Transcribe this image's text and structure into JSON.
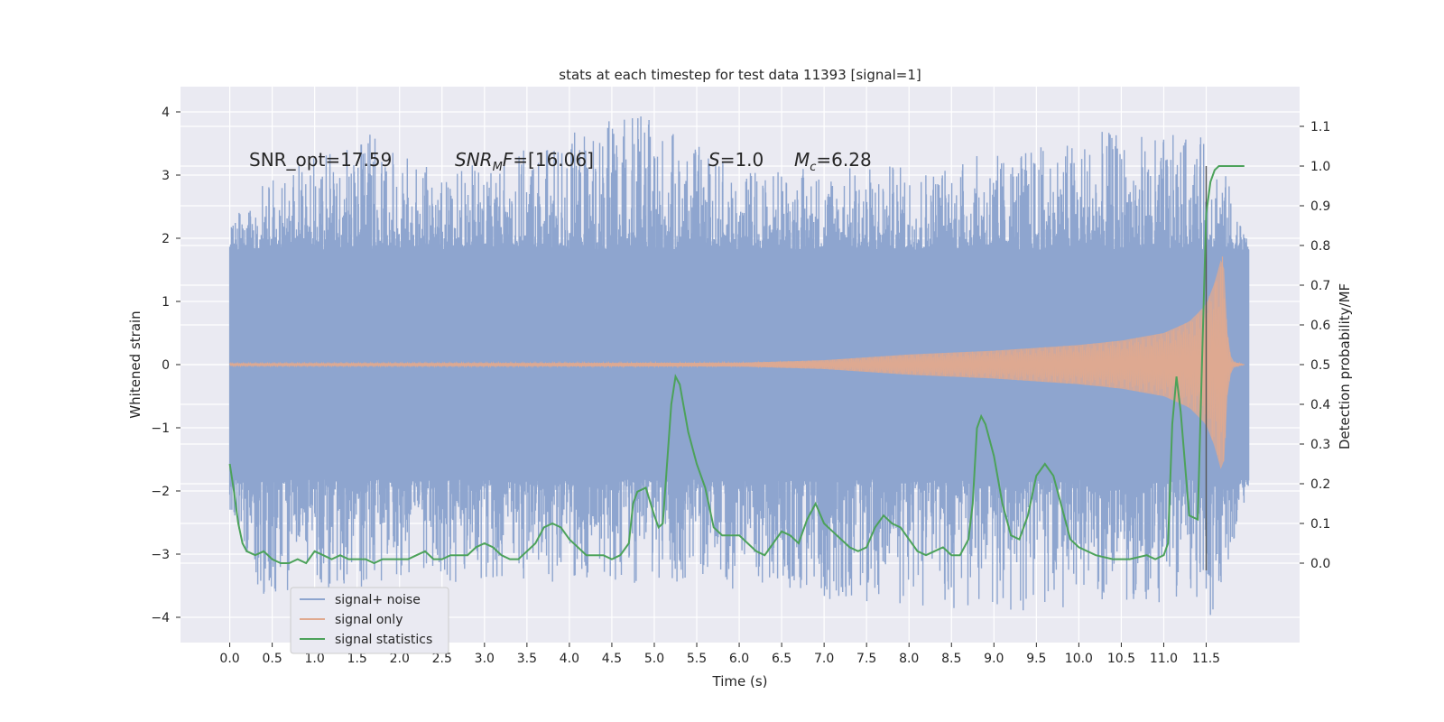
{
  "chart_data": {
    "type": "line",
    "title": "stats at each timestep for test data 11393 [signal=1]",
    "xlabel": "Time (s)",
    "ylabel": "Whitened strain",
    "ylabel_right": "Detection probability/MF",
    "xlim": [
      -0.58,
      12.6
    ],
    "ylim": [
      -4.4,
      4.4
    ],
    "ylim_right": [
      -0.2,
      1.2
    ],
    "x_ticks": [
      0.0,
      0.5,
      1.0,
      1.5,
      2.0,
      2.5,
      3.0,
      3.5,
      4.0,
      4.5,
      5.0,
      5.5,
      6.0,
      6.5,
      7.0,
      7.5,
      8.0,
      8.5,
      9.0,
      9.5,
      10.0,
      10.5,
      11.0,
      11.5
    ],
    "x_tick_labels": [
      "0.0",
      "0.5",
      "1.0",
      "1.5",
      "2.0",
      "2.5",
      "3.0",
      "3.5",
      "4.0",
      "4.5",
      "5.0",
      "5.5",
      "6.0",
      "6.5",
      "7.0",
      "7.5",
      "8.0",
      "8.5",
      "9.0",
      "9.5",
      "10.0",
      "10.5",
      "11.0",
      "11.5"
    ],
    "y_ticks": [
      -4,
      -3,
      -2,
      -1,
      0,
      1,
      2,
      3,
      4
    ],
    "y_tick_labels": [
      "−4",
      "−3",
      "−2",
      "−1",
      "0",
      "1",
      "2",
      "3",
      "4"
    ],
    "y_ticks_right": [
      0.0,
      0.1,
      0.2,
      0.3,
      0.4,
      0.5,
      0.6,
      0.7,
      0.8,
      0.9,
      1.0,
      1.1
    ],
    "y_tick_labels_right": [
      "0.0",
      "0.1",
      "0.2",
      "0.3",
      "0.4",
      "0.5",
      "0.6",
      "0.7",
      "0.8",
      "0.9",
      "1.0",
      "1.1"
    ],
    "grid": true,
    "legend_position": "lower-left",
    "annotations": [
      {
        "text": "SNR_opt=17.59",
        "x": 0.2,
        "y": 3.1
      },
      {
        "text": "SNRMF=[16.06]",
        "x": 2.6,
        "y": 3.1
      },
      {
        "text": "S=1.0",
        "x": 5.6,
        "y": 3.1
      },
      {
        "text": "Mc=6.28",
        "x": 6.6,
        "y": 3.1
      }
    ],
    "vline": {
      "x": 11.5,
      "y_right": [
        -0.0,
        1.0
      ]
    },
    "series": [
      {
        "name": "signal+ noise",
        "color": "#8ea5cf",
        "axis": "left",
        "kind": "noise-band",
        "x_range": [
          0.0,
          12.0
        ],
        "typical_amplitude": 1.3,
        "peak_envelope": [
          [
            0.0,
            2.3
          ],
          [
            0.4,
            2.9
          ],
          [
            1.6,
            3.7
          ],
          [
            2.5,
            3.0
          ],
          [
            4.8,
            4.0
          ],
          [
            6.0,
            3.1
          ],
          [
            8.2,
            3.2
          ],
          [
            9.2,
            3.4
          ],
          [
            10.3,
            3.7
          ],
          [
            11.6,
            3.6
          ],
          [
            12.0,
            1.9
          ]
        ],
        "trough_envelope": [
          [
            0.0,
            -2.5
          ],
          [
            0.4,
            -3.7
          ],
          [
            1.7,
            -3.5
          ],
          [
            3.3,
            -3.4
          ],
          [
            6.0,
            -3.6
          ],
          [
            9.1,
            -4.0
          ],
          [
            10.0,
            -3.8
          ],
          [
            11.3,
            -3.8
          ],
          [
            11.6,
            -4.0
          ],
          [
            12.0,
            -1.9
          ]
        ]
      },
      {
        "name": "signal only",
        "color": "#e0a98f",
        "axis": "left",
        "kind": "chirp",
        "x_range": [
          0.0,
          11.95
        ],
        "envelope": [
          [
            0.0,
            0.02
          ],
          [
            6.0,
            0.03
          ],
          [
            7.0,
            0.07
          ],
          [
            8.0,
            0.16
          ],
          [
            9.0,
            0.22
          ],
          [
            10.0,
            0.31
          ],
          [
            10.5,
            0.38
          ],
          [
            11.0,
            0.5
          ],
          [
            11.3,
            0.68
          ],
          [
            11.5,
            0.95
          ],
          [
            11.6,
            1.3
          ],
          [
            11.7,
            1.8
          ],
          [
            11.75,
            0.5
          ],
          [
            11.8,
            0.05
          ],
          [
            11.95,
            0.0
          ]
        ]
      },
      {
        "name": "signal statistics",
        "color": "#4ca25a",
        "axis": "right",
        "x": [
          0.0,
          0.05,
          0.1,
          0.15,
          0.2,
          0.3,
          0.4,
          0.5,
          0.6,
          0.7,
          0.8,
          0.9,
          1.0,
          1.1,
          1.2,
          1.3,
          1.4,
          1.5,
          1.6,
          1.7,
          1.8,
          1.9,
          2.0,
          2.1,
          2.2,
          2.3,
          2.4,
          2.5,
          2.6,
          2.7,
          2.8,
          2.9,
          3.0,
          3.1,
          3.2,
          3.3,
          3.4,
          3.5,
          3.6,
          3.7,
          3.8,
          3.9,
          4.0,
          4.1,
          4.2,
          4.3,
          4.4,
          4.5,
          4.6,
          4.7,
          4.75,
          4.8,
          4.9,
          5.0,
          5.05,
          5.1,
          5.15,
          5.2,
          5.25,
          5.3,
          5.4,
          5.5,
          5.6,
          5.7,
          5.8,
          5.9,
          6.0,
          6.1,
          6.2,
          6.3,
          6.4,
          6.5,
          6.6,
          6.7,
          6.8,
          6.9,
          7.0,
          7.1,
          7.2,
          7.3,
          7.4,
          7.5,
          7.6,
          7.7,
          7.8,
          7.9,
          8.0,
          8.1,
          8.2,
          8.3,
          8.4,
          8.5,
          8.6,
          8.7,
          8.75,
          8.8,
          8.85,
          8.9,
          9.0,
          9.1,
          9.2,
          9.3,
          9.4,
          9.5,
          9.6,
          9.7,
          9.8,
          9.9,
          10.0,
          10.2,
          10.4,
          10.6,
          10.8,
          10.9,
          11.0,
          11.05,
          11.1,
          11.15,
          11.2,
          11.3,
          11.4,
          11.45,
          11.5,
          11.55,
          11.6,
          11.65,
          11.7,
          11.8,
          11.9,
          11.95
        ],
        "values": [
          0.25,
          0.18,
          0.1,
          0.05,
          0.03,
          0.02,
          0.03,
          0.01,
          0.0,
          0.0,
          0.01,
          0.0,
          0.03,
          0.02,
          0.01,
          0.02,
          0.01,
          0.01,
          0.01,
          0.0,
          0.01,
          0.01,
          0.01,
          0.01,
          0.02,
          0.03,
          0.01,
          0.01,
          0.02,
          0.02,
          0.02,
          0.04,
          0.05,
          0.04,
          0.02,
          0.01,
          0.01,
          0.03,
          0.05,
          0.09,
          0.1,
          0.09,
          0.06,
          0.04,
          0.02,
          0.02,
          0.02,
          0.01,
          0.02,
          0.05,
          0.15,
          0.18,
          0.19,
          0.12,
          0.09,
          0.1,
          0.25,
          0.4,
          0.47,
          0.45,
          0.33,
          0.25,
          0.19,
          0.09,
          0.07,
          0.07,
          0.07,
          0.05,
          0.03,
          0.02,
          0.05,
          0.08,
          0.07,
          0.05,
          0.11,
          0.15,
          0.1,
          0.08,
          0.06,
          0.04,
          0.03,
          0.04,
          0.09,
          0.12,
          0.1,
          0.09,
          0.06,
          0.03,
          0.02,
          0.03,
          0.04,
          0.02,
          0.02,
          0.06,
          0.15,
          0.34,
          0.37,
          0.35,
          0.27,
          0.15,
          0.07,
          0.06,
          0.12,
          0.22,
          0.25,
          0.22,
          0.14,
          0.06,
          0.04,
          0.02,
          0.01,
          0.01,
          0.02,
          0.01,
          0.02,
          0.05,
          0.35,
          0.47,
          0.38,
          0.12,
          0.11,
          0.5,
          0.88,
          0.96,
          0.99,
          1.0,
          1.0,
          1.0,
          1.0,
          1.0
        ]
      }
    ]
  }
}
